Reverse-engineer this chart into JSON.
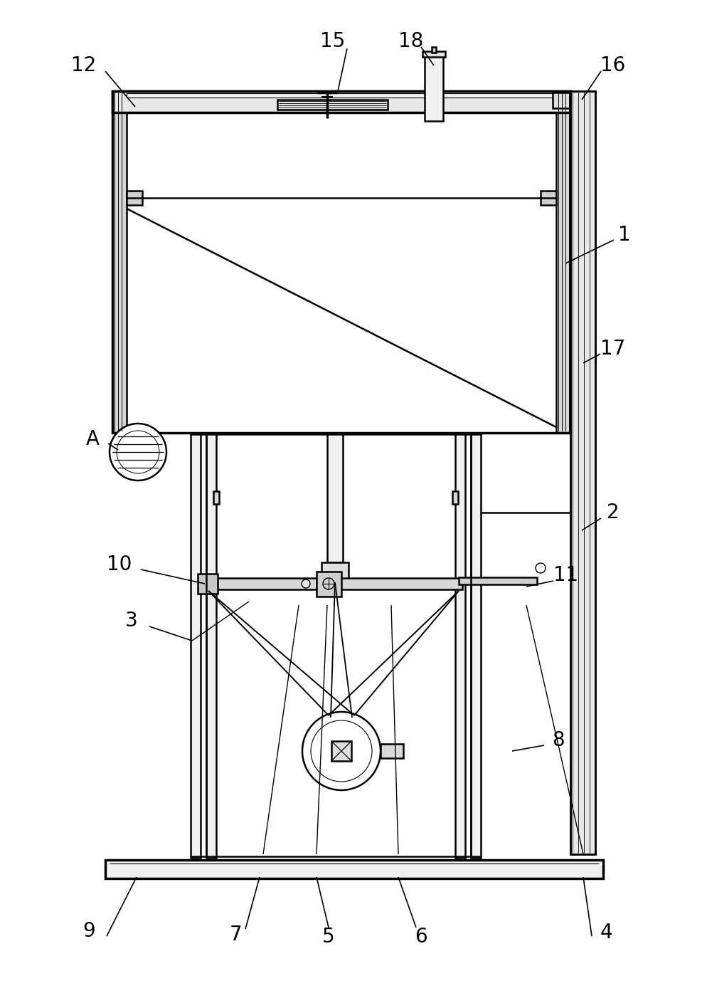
{
  "bg_color": "#ffffff",
  "line_color": "#000000",
  "lw_main": 1.8,
  "lw_thick": 2.5,
  "lw_thin": 0.9,
  "font_size": 20,
  "fig_w": 9.95,
  "fig_h": 14.16,
  "dpi": 100
}
